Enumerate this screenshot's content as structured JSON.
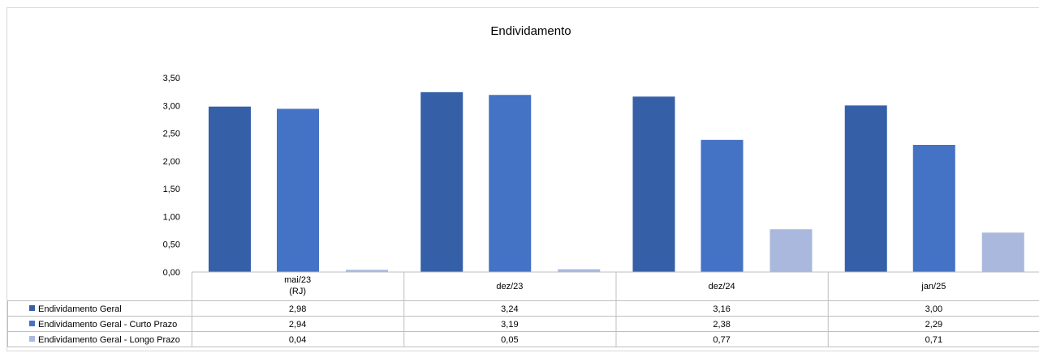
{
  "chart_data": {
    "type": "bar",
    "title": "Endividamento",
    "categories": [
      [
        "mai/23",
        "(RJ)"
      ],
      [
        "dez/23"
      ],
      [
        "dez/24"
      ],
      [
        "jan/25"
      ]
    ],
    "y_ticks": [
      "0,00",
      "0,50",
      "1,00",
      "1,50",
      "2,00",
      "2,50",
      "3,00",
      "3,50"
    ],
    "ylim": [
      0,
      3.5
    ],
    "y_step": 0.5,
    "grid": false,
    "legend": "data-table",
    "series": [
      {
        "name": "Endividamento Geral",
        "color": "#3560a8",
        "values": [
          2.98,
          3.24,
          3.16,
          3.0
        ],
        "labels": [
          "2,98",
          "3,24",
          "3,16",
          "3,00"
        ]
      },
      {
        "name": "Endividamento Geral - Curto Prazo",
        "color": "#4472c4",
        "values": [
          2.94,
          3.19,
          2.38,
          2.29
        ],
        "labels": [
          "2,94",
          "3,19",
          "2,38",
          "2,29"
        ]
      },
      {
        "name": "Endividamento Geral - Longo Prazo",
        "color": "#a9b8dc",
        "values": [
          0.04,
          0.05,
          0.77,
          0.71
        ],
        "labels": [
          "0,04",
          "0,05",
          "0,77",
          "0,71"
        ]
      }
    ]
  }
}
